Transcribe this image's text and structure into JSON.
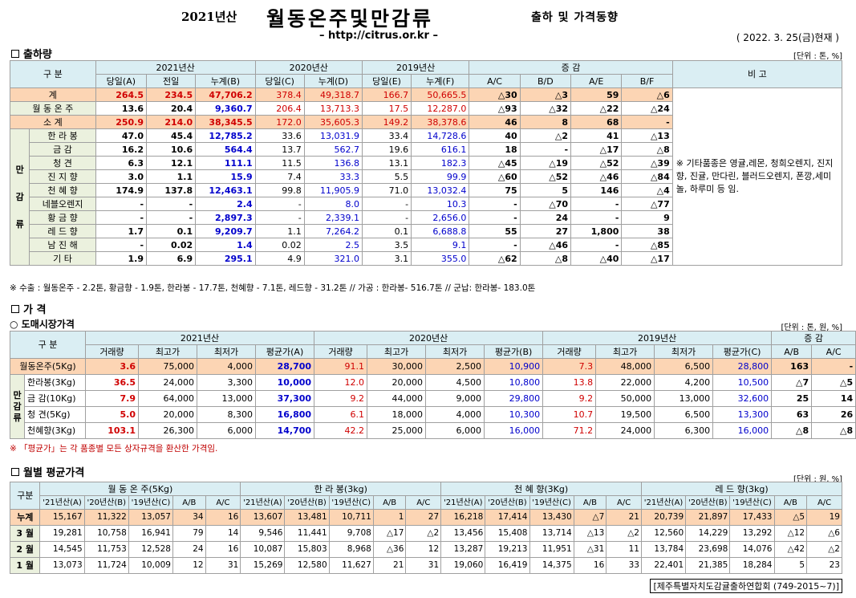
{
  "header": {
    "year_label": "2021년산",
    "title": "월동온주및만감류",
    "subtitle": "출하 및 가격동향",
    "url": "– http://citrus.or.kr –",
    "asof": "( 2022. 3. 25(금)현재 )"
  },
  "shipment": {
    "section_title": "출하량",
    "unit": "[단위 : 톤, %]",
    "h_category": "구 분",
    "h_2021": "2021년산",
    "h_2020": "2020년산",
    "h_2019": "2019년산",
    "h_change": "증 감",
    "h_remark": "비 고",
    "h_today_a": "당일(A)",
    "h_prev": "전일",
    "h_cum_b": "누계(B)",
    "h_today_c": "당일(C)",
    "h_cum_d": "누계(D)",
    "h_today_e": "당일(E)",
    "h_cum_f": "누계(F)",
    "h_ac": "A/C",
    "h_bd": "B/D",
    "h_ae": "A/E",
    "h_bf": "B/F",
    "side_label": "만 감 류",
    "side_chars": [
      "만",
      "감",
      "류"
    ],
    "remark": "※ 기타품종은 영귤,레몬, 청희오렌지, 진지향, 진귤, 만다린, 블러드오렌지, 폰깡,세미놀, 하루미 등 임.",
    "rows": [
      {
        "name": "계",
        "v": [
          "264.5",
          "234.5",
          "47,706.2",
          "378.4",
          "49,318.7",
          "166.7",
          "50,665.5",
          "△30",
          "△3",
          "59",
          "△6"
        ]
      },
      {
        "name": "월 동 온 주",
        "v": [
          "13.6",
          "20.4",
          "9,360.7",
          "206.4",
          "13,713.3",
          "17.5",
          "12,287.0",
          "△93",
          "△32",
          "△22",
          "△24"
        ]
      },
      {
        "name": "소 계",
        "v": [
          "250.9",
          "214.0",
          "38,345.5",
          "172.0",
          "35,605.3",
          "149.2",
          "38,378.6",
          "46",
          "8",
          "68",
          "-"
        ]
      },
      {
        "name": "한 라 봉",
        "v": [
          "47.0",
          "45.4",
          "12,785.2",
          "33.6",
          "13,031.9",
          "33.4",
          "14,728.6",
          "40",
          "△2",
          "41",
          "△13"
        ]
      },
      {
        "name": "금 감",
        "v": [
          "16.2",
          "10.6",
          "564.4",
          "13.7",
          "562.7",
          "19.6",
          "616.1",
          "18",
          "-",
          "△17",
          "△8"
        ]
      },
      {
        "name": "청 견",
        "v": [
          "6.3",
          "12.1",
          "111.1",
          "11.5",
          "136.8",
          "13.1",
          "182.3",
          "△45",
          "△19",
          "△52",
          "△39"
        ]
      },
      {
        "name": "진 지 향",
        "v": [
          "3.0",
          "1.1",
          "15.9",
          "7.4",
          "33.3",
          "5.5",
          "99.9",
          "△60",
          "△52",
          "△46",
          "△84"
        ]
      },
      {
        "name": "천 혜 향",
        "v": [
          "174.9",
          "137.8",
          "12,463.1",
          "99.8",
          "11,905.9",
          "71.0",
          "13,032.4",
          "75",
          "5",
          "146",
          "△4"
        ]
      },
      {
        "name": "네블오렌지",
        "v": [
          "-",
          "-",
          "2.4",
          "-",
          "8.0",
          "-",
          "10.3",
          "-",
          "△70",
          "-",
          "△77"
        ]
      },
      {
        "name": "황 금 향",
        "v": [
          "-",
          "-",
          "2,897.3",
          "-",
          "2,339.1",
          "-",
          "2,656.0",
          "-",
          "24",
          "-",
          "9"
        ]
      },
      {
        "name": "레 드 향",
        "v": [
          "1.7",
          "0.1",
          "9,209.7",
          "1.1",
          "7,264.2",
          "0.1",
          "6,688.8",
          "55",
          "27",
          "1,800",
          "38"
        ]
      },
      {
        "name": "남 진 해",
        "v": [
          "-",
          "0.02",
          "1.4",
          "0.02",
          "2.5",
          "3.5",
          "9.1",
          "-",
          "△46",
          "-",
          "△85"
        ]
      },
      {
        "name": "기 타",
        "v": [
          "1.9",
          "6.9",
          "295.1",
          "4.9",
          "321.0",
          "3.1",
          "355.0",
          "△62",
          "△8",
          "△40",
          "△17"
        ]
      }
    ],
    "footnote": "※ 수출 : 월동온주 - 2.2톤, 황금향 - 1.9톤, 한라봉 - 17.7톤, 천혜향 - 7.1톤, 레드향 - 31.2톤 // 가공 : 한라봉- 516.7톤 // 군납: 한라봉- 183.0톤"
  },
  "price": {
    "section_title": "가 격",
    "sub_title": "○ 도매시장가격",
    "unit": "[단위 : 톤, 원, %]",
    "h_category": "구 분",
    "h_2021": "2021년산",
    "h_2020": "2020년산",
    "h_2019": "2019년산",
    "h_change": "증 감",
    "cols_2021": [
      "거래량",
      "최고가",
      "최저가",
      "평균가(A)"
    ],
    "cols_2020": [
      "거래량",
      "최고가",
      "최저가",
      "평균가(B)"
    ],
    "cols_2019": [
      "거래량",
      "최고가",
      "최저가",
      "평균가(C)"
    ],
    "h_ab": "A/B",
    "h_ac": "A/C",
    "side_chars": [
      "만",
      "감",
      "류"
    ],
    "rows": [
      {
        "name": "월동온주(5Kg)",
        "v": [
          "3.6",
          "75,000",
          "4,000",
          "28,700",
          "91.1",
          "30,000",
          "2,500",
          "10,900",
          "7.3",
          "48,000",
          "6,500",
          "28,800",
          "163",
          "-"
        ]
      },
      {
        "name": "한라봉(3Kg)",
        "v": [
          "36.5",
          "24,000",
          "3,300",
          "10,000",
          "12.0",
          "20,000",
          "4,500",
          "10,800",
          "13.8",
          "22,000",
          "4,200",
          "10,500",
          "△7",
          "△5"
        ]
      },
      {
        "name": "금 감(10Kg)",
        "v": [
          "7.9",
          "64,000",
          "13,000",
          "37,300",
          "9.2",
          "44,000",
          "9,000",
          "29,800",
          "9.2",
          "50,000",
          "13,000",
          "32,600",
          "25",
          "14"
        ]
      },
      {
        "name": "청 견(5Kg)",
        "v": [
          "5.0",
          "20,000",
          "8,300",
          "16,800",
          "6.1",
          "18,000",
          "4,000",
          "10,300",
          "10.7",
          "19,500",
          "6,500",
          "13,300",
          "63",
          "26"
        ]
      },
      {
        "name": "천혜향(3Kg)",
        "v": [
          "103.1",
          "26,300",
          "6,000",
          "14,700",
          "42.2",
          "25,000",
          "6,000",
          "16,000",
          "71.2",
          "24,000",
          "6,300",
          "16,000",
          "△8",
          "△8"
        ]
      }
    ],
    "footnote": "※ 「평균가」는 각 품종별 모든 상자규격을 환산한 가격임."
  },
  "monthly": {
    "section_title": "월별 평균가격",
    "unit": "[단위 : 원, %]",
    "h_category": "구분",
    "groups": [
      "월 동 온 주(5Kg)",
      "한 라 봉(3kg)",
      "천 혜 향(3Kg)",
      "레 드 향(3kg)"
    ],
    "sub_cols": [
      "'21년산(A)",
      "'20년산(B)",
      "'19년산(C)",
      "A/B",
      "A/C"
    ],
    "rows": [
      {
        "name": "누계",
        "v": [
          "15,167",
          "11,322",
          "13,057",
          "34",
          "16",
          "13,607",
          "13,481",
          "10,711",
          "1",
          "27",
          "16,218",
          "17,414",
          "13,430",
          "△7",
          "21",
          "20,739",
          "21,897",
          "17,433",
          "△5",
          "19"
        ]
      },
      {
        "name": "3 월",
        "v": [
          "19,281",
          "10,758",
          "16,941",
          "79",
          "14",
          "9,546",
          "11,441",
          "9,708",
          "△17",
          "△2",
          "13,456",
          "15,408",
          "13,714",
          "△13",
          "△2",
          "12,560",
          "14,229",
          "13,292",
          "△12",
          "△6"
        ]
      },
      {
        "name": "2 월",
        "v": [
          "14,545",
          "11,753",
          "12,528",
          "24",
          "16",
          "10,087",
          "15,803",
          "8,968",
          "△36",
          "12",
          "13,287",
          "19,213",
          "11,951",
          "△31",
          "11",
          "13,784",
          "23,698",
          "14,076",
          "△42",
          "△2"
        ]
      },
      {
        "name": "1 월",
        "v": [
          "13,073",
          "11,724",
          "10,009",
          "12",
          "31",
          "15,269",
          "12,580",
          "11,627",
          "21",
          "31",
          "19,060",
          "16,419",
          "14,375",
          "16",
          "33",
          "22,401",
          "21,385",
          "18,284",
          "5",
          "23"
        ]
      }
    ],
    "footer": "[제주특별자치도감귤출하연합회 (749-2015~7)]"
  }
}
